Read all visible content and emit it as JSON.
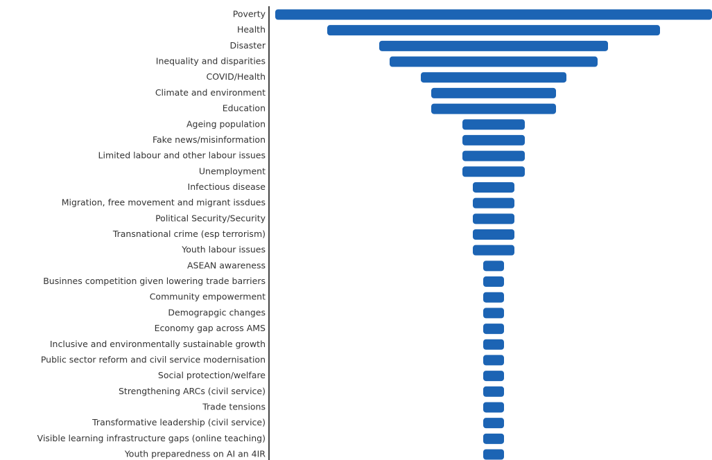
{
  "chart_data": {
    "type": "bar",
    "categories": [
      "Poverty",
      "Health",
      "Disaster",
      "Inequality and disparities",
      "COVID/Health",
      "Climate and environment",
      "Education",
      "Ageing population",
      "Fake news/misinformation",
      "Limited labour and other labour issues",
      "Unemployment",
      "Infectious disease",
      "Migration, free movement and migrant issdues",
      "Political Security/Security",
      "Transnational crime (esp terrorism)",
      "Youth labour issues",
      "ASEAN awareness",
      "Businnes competition given lowering trade barriers",
      "Community empowerment",
      "Demograpgic changes",
      "Economy gap across AMS",
      "Inclusive and environmentally sustainable growth",
      "Public sector reform and civil service modernisation",
      "Social protection/welfare",
      "Strengthening ARCs (civil service)",
      "Trade tensions",
      "Transformative leadership (civil service)",
      "Visible learning infrastructure gaps (online teaching)",
      "Youth preparedness on AI an 4IR"
    ],
    "values": [
      21,
      16,
      11,
      10,
      7,
      6,
      6,
      3,
      3,
      3,
      3,
      2,
      2,
      2,
      2,
      2,
      1,
      1,
      1,
      1,
      1,
      1,
      1,
      1,
      1,
      1,
      1,
      1,
      1
    ],
    "color": "#1c64b4"
  }
}
